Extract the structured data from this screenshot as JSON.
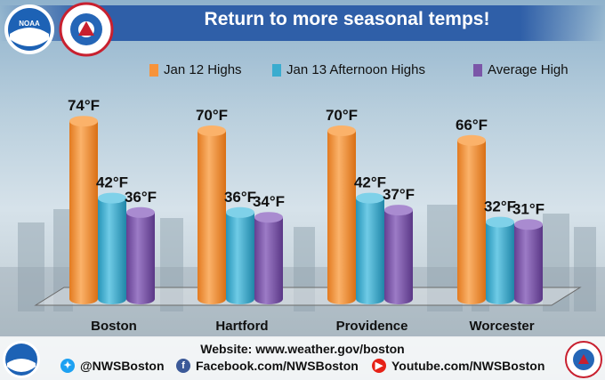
{
  "header": {
    "title": "Return to more seasonal temps!",
    "left_logo_text": "NOAA",
    "right_logo_text": "NATIONAL WEATHER SERVICE"
  },
  "footer": {
    "website": "Website: www.weather.gov/boston",
    "twitter": "@NWSBoston",
    "facebook": "Facebook.com/NWSBoston",
    "youtube": "Youtube.com/NWSBoston",
    "twitter_icon": "twitter-icon",
    "facebook_icon": "facebook-icon",
    "youtube_icon": "youtube-icon"
  },
  "chart_data": {
    "type": "bar",
    "title": "Return to more seasonal temps!",
    "categories": [
      "Boston",
      "Hartford",
      "Providence",
      "Worcester"
    ],
    "series": [
      {
        "name": "Jan 12 Highs",
        "values": [
          74,
          70,
          70,
          66
        ],
        "labels": [
          "74°F",
          "70°F",
          "70°F",
          "66°F"
        ],
        "color": "#f7933a"
      },
      {
        "name": "Jan 13 Afternoon Highs",
        "values": [
          42,
          36,
          42,
          32
        ],
        "labels": [
          "42°F",
          "36°F",
          "42°F",
          "32°F"
        ],
        "color": "#3aaccf"
      },
      {
        "name": "Average High",
        "values": [
          36,
          34,
          37,
          31
        ],
        "labels": [
          "36°F",
          "34°F",
          "37°F",
          "31°F"
        ],
        "color": "#7b56a8"
      }
    ],
    "legend_position": "top",
    "grid": false,
    "ylim": [
      0,
      80
    ]
  }
}
